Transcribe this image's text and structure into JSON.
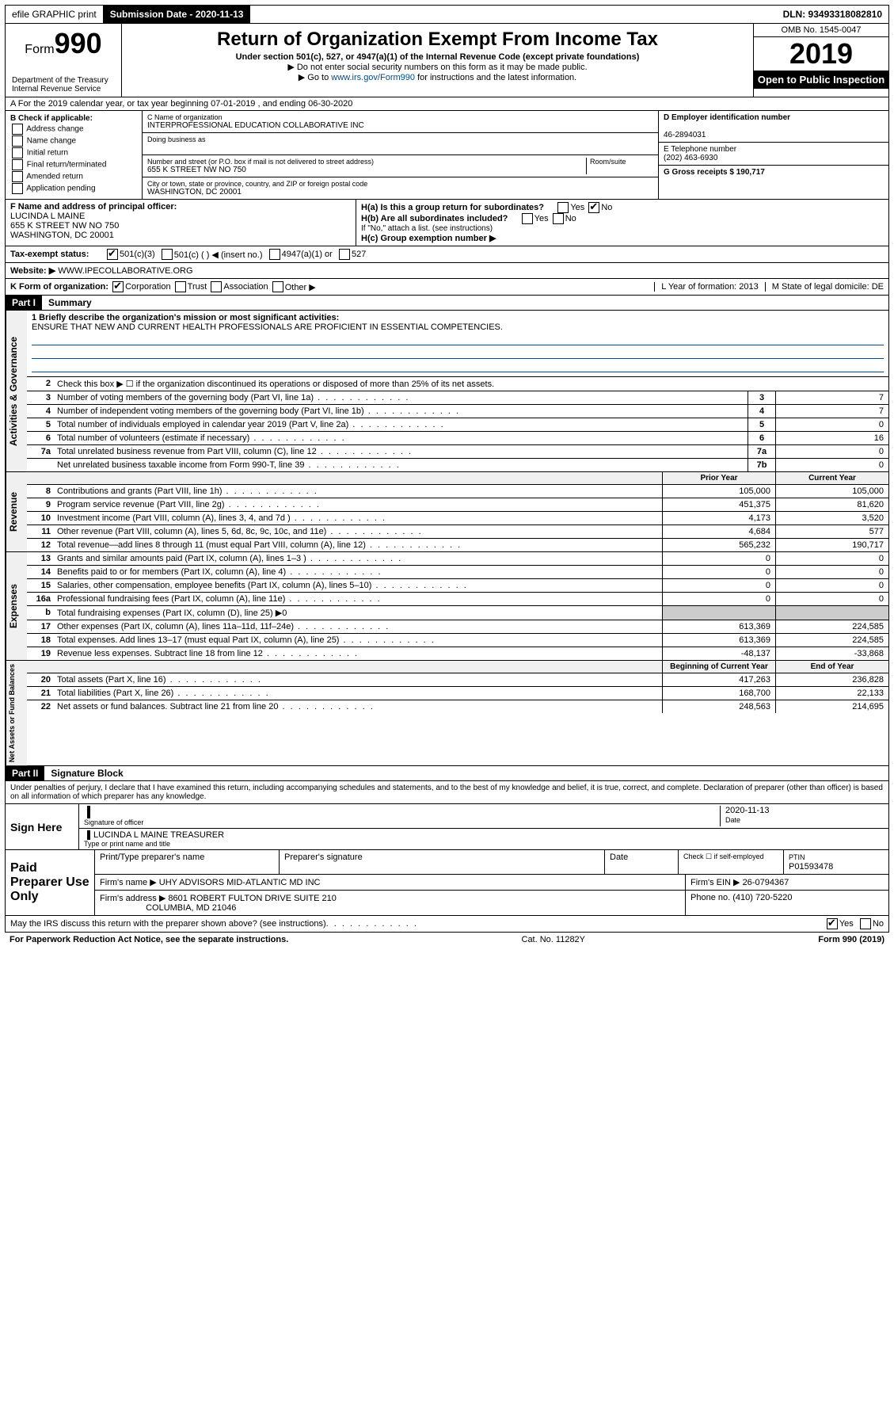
{
  "topbar": {
    "efile": "efile GRAPHIC print",
    "submission_label": "Submission Date - 2020-11-13",
    "dln": "DLN: 93493318082810"
  },
  "header": {
    "form_prefix": "Form",
    "form_number": "990",
    "dept": "Department of the Treasury",
    "irs": "Internal Revenue Service",
    "title": "Return of Organization Exempt From Income Tax",
    "subtitle": "Under section 501(c), 527, or 4947(a)(1) of the Internal Revenue Code (except private foundations)",
    "note1": "▶ Do not enter social security numbers on this form as it may be made public.",
    "note2_pre": "▶ Go to ",
    "note2_link": "www.irs.gov/Form990",
    "note2_post": " for instructions and the latest information.",
    "omb": "OMB No. 1545-0047",
    "year": "2019",
    "open": "Open to Public Inspection"
  },
  "period": {
    "text": "A For the 2019 calendar year, or tax year beginning 07-01-2019  , and ending 06-30-2020"
  },
  "entity": {
    "b_label": "B Check if applicable:",
    "b_opts": [
      "Address change",
      "Name change",
      "Initial return",
      "Final return/terminated",
      "Amended return",
      "Application pending"
    ],
    "c_label": "C Name of organization",
    "c_name": "INTERPROFESSIONAL EDUCATION COLLABORATIVE INC",
    "dba_label": "Doing business as",
    "addr_label": "Number and street (or P.O. box if mail is not delivered to street address)",
    "addr": "655 K STREET NW NO 750",
    "room_label": "Room/suite",
    "city_label": "City or town, state or province, country, and ZIP or foreign postal code",
    "city": "WASHINGTON, DC  20001",
    "d_label": "D Employer identification number",
    "d_ein": "46-2894031",
    "e_label": "E Telephone number",
    "e_phone": "(202) 463-6930",
    "g_label": "G Gross receipts $ 190,717"
  },
  "fghij": {
    "f_label": "F  Name and address of principal officer:",
    "f_name": "LUCINDA L MAINE",
    "f_addr1": "655 K STREET NW NO 750",
    "f_addr2": "WASHINGTON, DC  20001",
    "ha_label": "H(a)  Is this a group return for subordinates?",
    "ha_no": "No",
    "hb_label": "H(b)  Are all subordinates included?",
    "hb_note": "If \"No,\" attach a list. (see instructions)",
    "hc_label": "H(c)  Group exemption number ▶",
    "i_label": "Tax-exempt status:",
    "i_501c3": "501(c)(3)",
    "i_501c": "501(c) (  ) ◀ (insert no.)",
    "i_4947": "4947(a)(1) or",
    "i_527": "527",
    "j_label": "Website: ▶",
    "j_site": "WWW.IPECOLLABORATIVE.ORG",
    "k_label": "K Form of organization:",
    "k_corp": "Corporation",
    "k_trust": "Trust",
    "k_assoc": "Association",
    "k_other": "Other ▶",
    "l_label": "L Year of formation: 2013",
    "m_label": "M State of legal domicile: DE"
  },
  "part1": {
    "header": "Part I",
    "title": "Summary",
    "mission_label": "1  Briefly describe the organization's mission or most significant activities:",
    "mission": "ENSURE THAT NEW AND CURRENT HEALTH PROFESSIONALS ARE PROFICIENT IN ESSENTIAL COMPETENCIES.",
    "line2": "Check this box ▶ ☐ if the organization discontinued its operations or disposed of more than 25% of its net assets.",
    "tabs": {
      "gov": "Activities & Governance",
      "rev": "Revenue",
      "exp": "Expenses",
      "net": "Net Assets or Fund Balances"
    },
    "cols": {
      "prior": "Prior Year",
      "current": "Current Year",
      "beg": "Beginning of Current Year",
      "end": "End of Year"
    },
    "lines_gov": [
      {
        "n": "3",
        "d": "Number of voting members of the governing body (Part VI, line 1a)",
        "box": "3",
        "v": "7"
      },
      {
        "n": "4",
        "d": "Number of independent voting members of the governing body (Part VI, line 1b)",
        "box": "4",
        "v": "7"
      },
      {
        "n": "5",
        "d": "Total number of individuals employed in calendar year 2019 (Part V, line 2a)",
        "box": "5",
        "v": "0"
      },
      {
        "n": "6",
        "d": "Total number of volunteers (estimate if necessary)",
        "box": "6",
        "v": "16"
      },
      {
        "n": "7a",
        "d": "Total unrelated business revenue from Part VIII, column (C), line 12",
        "box": "7a",
        "v": "0"
      },
      {
        "n": "",
        "d": "Net unrelated business taxable income from Form 990-T, line 39",
        "box": "7b",
        "v": "0"
      }
    ],
    "lines_rev": [
      {
        "n": "8",
        "d": "Contributions and grants (Part VIII, line 1h)",
        "p": "105,000",
        "c": "105,000"
      },
      {
        "n": "9",
        "d": "Program service revenue (Part VIII, line 2g)",
        "p": "451,375",
        "c": "81,620"
      },
      {
        "n": "10",
        "d": "Investment income (Part VIII, column (A), lines 3, 4, and 7d )",
        "p": "4,173",
        "c": "3,520"
      },
      {
        "n": "11",
        "d": "Other revenue (Part VIII, column (A), lines 5, 6d, 8c, 9c, 10c, and 11e)",
        "p": "4,684",
        "c": "577"
      },
      {
        "n": "12",
        "d": "Total revenue—add lines 8 through 11 (must equal Part VIII, column (A), line 12)",
        "p": "565,232",
        "c": "190,717"
      }
    ],
    "lines_exp": [
      {
        "n": "13",
        "d": "Grants and similar amounts paid (Part IX, column (A), lines 1–3 )",
        "p": "0",
        "c": "0"
      },
      {
        "n": "14",
        "d": "Benefits paid to or for members (Part IX, column (A), line 4)",
        "p": "0",
        "c": "0"
      },
      {
        "n": "15",
        "d": "Salaries, other compensation, employee benefits (Part IX, column (A), lines 5–10)",
        "p": "0",
        "c": "0"
      },
      {
        "n": "16a",
        "d": "Professional fundraising fees (Part IX, column (A), line 11e)",
        "p": "0",
        "c": "0"
      },
      {
        "n": "b",
        "d": "Total fundraising expenses (Part IX, column (D), line 25) ▶0",
        "p": "",
        "c": ""
      },
      {
        "n": "17",
        "d": "Other expenses (Part IX, column (A), lines 11a–11d, 11f–24e)",
        "p": "613,369",
        "c": "224,585"
      },
      {
        "n": "18",
        "d": "Total expenses. Add lines 13–17 (must equal Part IX, column (A), line 25)",
        "p": "613,369",
        "c": "224,585"
      },
      {
        "n": "19",
        "d": "Revenue less expenses. Subtract line 18 from line 12",
        "p": "-48,137",
        "c": "-33,868"
      }
    ],
    "lines_net": [
      {
        "n": "20",
        "d": "Total assets (Part X, line 16)",
        "p": "417,263",
        "c": "236,828"
      },
      {
        "n": "21",
        "d": "Total liabilities (Part X, line 26)",
        "p": "168,700",
        "c": "22,133"
      },
      {
        "n": "22",
        "d": "Net assets or fund balances. Subtract line 21 from line 20",
        "p": "248,563",
        "c": "214,695"
      }
    ]
  },
  "part2": {
    "header": "Part II",
    "title": "Signature Block",
    "perjury": "Under penalties of perjury, I declare that I have examined this return, including accompanying schedules and statements, and to the best of my knowledge and belief, it is true, correct, and complete. Declaration of preparer (other than officer) is based on all information of which preparer has any knowledge.",
    "sign_here": "Sign Here",
    "sig_officer": "Signature of officer",
    "sig_date": "2020-11-13",
    "date_lbl": "Date",
    "officer_name": "LUCINDA L MAINE  TREASURER",
    "type_name": "Type or print name and title",
    "paid": "Paid Preparer Use Only",
    "prep_name_lbl": "Print/Type preparer's name",
    "prep_sig_lbl": "Preparer's signature",
    "prep_date_lbl": "Date",
    "self_emp": "Check ☐ if self-employed",
    "ptin_lbl": "PTIN",
    "ptin": "P01593478",
    "firm_name_lbl": "Firm's name  ▶",
    "firm_name": "UHY ADVISORS MID-ATLANTIC MD INC",
    "firm_ein_lbl": "Firm's EIN ▶",
    "firm_ein": "26-0794367",
    "firm_addr_lbl": "Firm's address ▶",
    "firm_addr1": "8601 ROBERT FULTON DRIVE SUITE 210",
    "firm_addr2": "COLUMBIA, MD  21046",
    "firm_phone_lbl": "Phone no.",
    "firm_phone": "(410) 720-5220",
    "discuss": "May the IRS discuss this return with the preparer shown above? (see instructions)",
    "yes": "Yes",
    "no": "No"
  },
  "footer": {
    "pra": "For Paperwork Reduction Act Notice, see the separate instructions.",
    "cat": "Cat. No. 11282Y",
    "form": "Form 990 (2019)"
  }
}
